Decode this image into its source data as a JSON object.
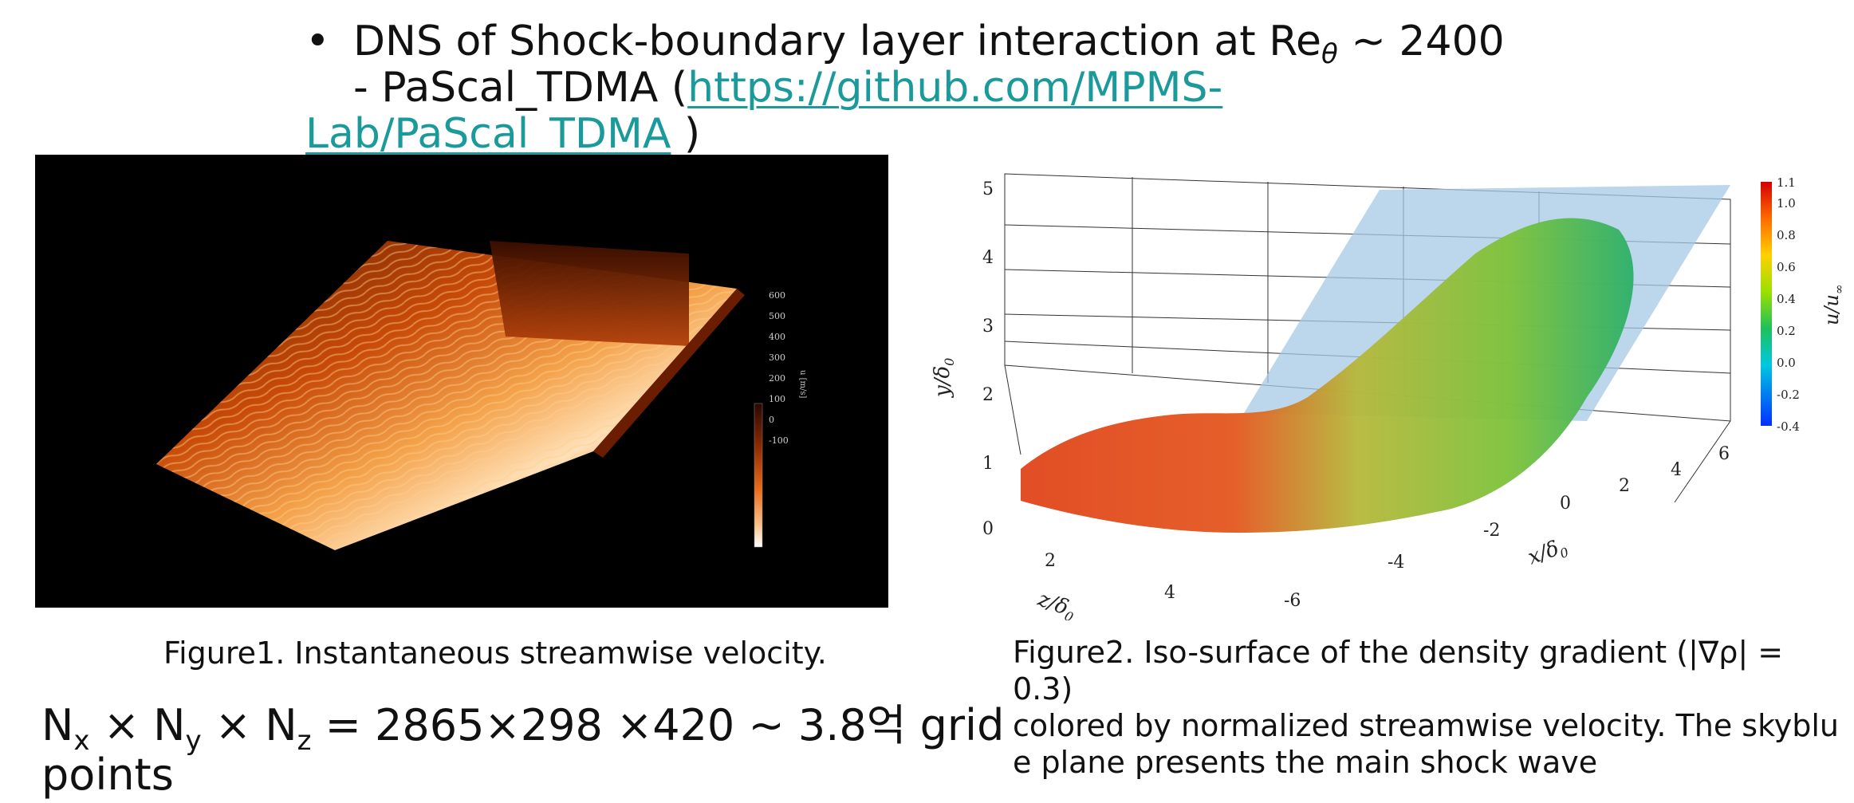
{
  "header": {
    "bullet": "•",
    "line1_text": "DNS of Shock-boundary layer interaction at Re",
    "line1_sub": "θ",
    "line1_tail": " ~ 2400",
    "line2_prefix": "- PaScal_TDMA (",
    "link_part1": "https://github.com/MPMS-",
    "link_part2": "Lab/PaScal_TDMA",
    "line3_suffix": " )"
  },
  "figure1": {
    "colorbar_ticks": [
      "600",
      "500",
      "400",
      "300",
      "200",
      "100",
      "0",
      "-100"
    ],
    "colorbar_label": "u [m/s]",
    "caption": "Figure1. Instantaneous streamwise velocity."
  },
  "figure2": {
    "y_ticks": [
      "0",
      "1",
      "2",
      "3",
      "4",
      "5"
    ],
    "y_label": "y/δ",
    "y_label_sub": "0",
    "z_ticks": [
      "2",
      "4"
    ],
    "z_label": "z/δ",
    "z_label_sub": "0",
    "x_ticks": [
      "-6",
      "-4",
      "-2",
      "0",
      "2",
      "4",
      "6"
    ],
    "x_label": "x/δ",
    "x_label_sub": "0",
    "colorbar_ticks": [
      "1.1",
      "1.0",
      "0.8",
      "0.6",
      "0.4",
      "0.2",
      "0.0",
      "-0.2",
      "-0.4"
    ],
    "colorbar_label": "u/u",
    "colorbar_label_sub": "∞",
    "caption_line1": "Figure2. Iso-surface of the density gradient (|∇ρ| = 0.3)",
    "caption_line2": "colored by normalized streamwise velocity. The skyblu",
    "caption_line3": "e plane presents the main shock wave"
  },
  "grid_info": {
    "N1": "N",
    "N1_sub": "x",
    "times1": " × ",
    "N2": "N",
    "N2_sub": "y",
    "times2": " × ",
    "N3": "N",
    "N3_sub": "z",
    "values": " = 2865×298 ×420 ~ 3.8억 grid",
    "line2": "points"
  }
}
